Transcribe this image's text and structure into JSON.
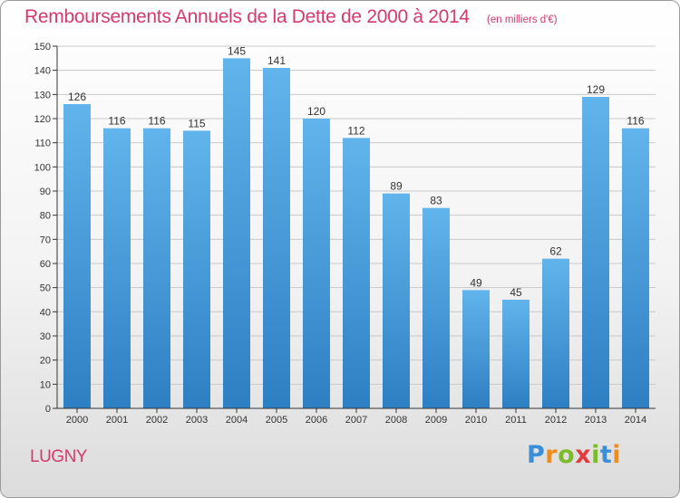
{
  "title": "Remboursements Annuels de la Dette de 2000 à 2014",
  "subtitle": "(en milliers d'€)",
  "footer_label": "LUGNY",
  "logo": {
    "text": "Proxiti",
    "letter_colors": [
      "#3a8fd8",
      "#f08c1a",
      "#7dbb2b",
      "#e23c3c",
      "#7dbb2b",
      "#3a8fd8",
      "#f08c1a"
    ]
  },
  "colors": {
    "bar_top": "#62b4ec",
    "bar_bottom": "#2d7fc3",
    "title": "#d33a6d",
    "axis": "#333333",
    "grid": "#c9c9c9"
  },
  "chart_data": {
    "type": "bar",
    "categories": [
      "2000",
      "2001",
      "2002",
      "2003",
      "2004",
      "2005",
      "2006",
      "2007",
      "2008",
      "2009",
      "2010",
      "2011",
      "2012",
      "2013",
      "2014"
    ],
    "values": [
      126,
      116,
      116,
      115,
      145,
      141,
      120,
      112,
      89,
      83,
      49,
      45,
      62,
      129,
      116
    ],
    "ylim": [
      0,
      150
    ],
    "yticks": [
      0,
      10,
      20,
      30,
      40,
      50,
      60,
      70,
      80,
      90,
      100,
      110,
      120,
      130,
      140,
      150
    ],
    "grid": true,
    "data_labels": true
  }
}
